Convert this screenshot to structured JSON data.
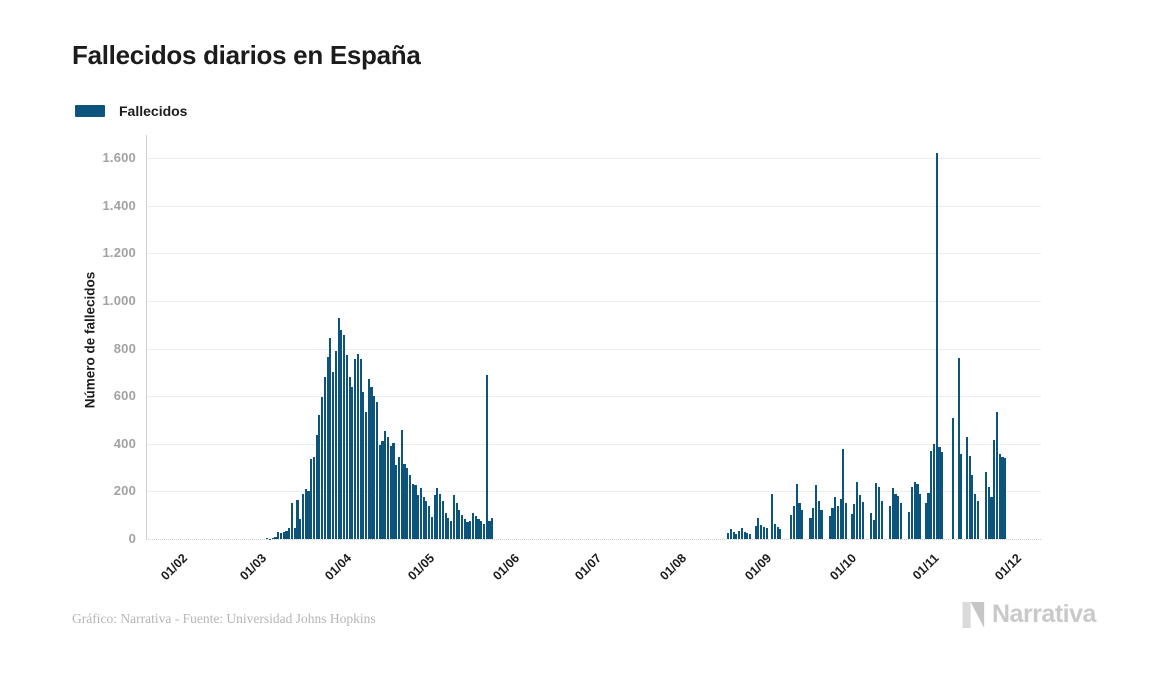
{
  "header": {
    "title": "Fallecidos diarios en España"
  },
  "legend": {
    "label": "Fallecidos",
    "color": "#0c547c"
  },
  "footer": {
    "credit": "Gráfico: Narrativa - Fuente: Universidad Johns Hopkins",
    "brand": "Narrativa"
  },
  "chart_data": {
    "type": "bar",
    "title": "Fallecidos diarios en España",
    "series_name": "Fallecidos",
    "xlabel": "",
    "ylabel": "Número de fallecidos",
    "ylim": [
      0,
      1600
    ],
    "grid": true,
    "legend_position": "top-left",
    "bar_color": "#0c547c",
    "y_ticks": [
      {
        "v": 0,
        "label": "0"
      },
      {
        "v": 200,
        "label": "200"
      },
      {
        "v": 400,
        "label": "400"
      },
      {
        "v": 600,
        "label": "600"
      },
      {
        "v": 800,
        "label": "800"
      },
      {
        "v": 1000,
        "label": "1.000"
      },
      {
        "v": 1200,
        "label": "1.200"
      },
      {
        "v": 1400,
        "label": "1.400"
      },
      {
        "v": 1600,
        "label": "1.600"
      }
    ],
    "x_ticks": [
      {
        "label": "01/02",
        "day": 0
      },
      {
        "label": "01/03",
        "day": 29
      },
      {
        "label": "01/04",
        "day": 60
      },
      {
        "label": "01/05",
        "day": 90
      },
      {
        "label": "01/06",
        "day": 121
      },
      {
        "label": "01/07",
        "day": 151
      },
      {
        "label": "01/08",
        "day": 182
      },
      {
        "label": "01/09",
        "day": 213
      },
      {
        "label": "01/10",
        "day": 244
      },
      {
        "label": "01/11",
        "day": 274
      },
      {
        "label": "01/12",
        "day": 304
      }
    ],
    "x_start": "01/02/2020",
    "x_end": "01/12/2020",
    "days_total": 305,
    "values": [
      0,
      0,
      0,
      0,
      0,
      0,
      0,
      0,
      0,
      0,
      0,
      0,
      0,
      0,
      0,
      0,
      0,
      0,
      0,
      0,
      0,
      0,
      0,
      0,
      0,
      0,
      0,
      0,
      0,
      0,
      0,
      0,
      0,
      0,
      3,
      2,
      5,
      10,
      28,
      25,
      30,
      33,
      45,
      150,
      45,
      165,
      85,
      190,
      210,
      200,
      336,
      345,
      437,
      520,
      596,
      680,
      764,
      845,
      700,
      790,
      930,
      878,
      857,
      773,
      680,
      638,
      756,
      775,
      757,
      617,
      533,
      672,
      640,
      600,
      575,
      394,
      410,
      455,
      430,
      390,
      405,
      310,
      345,
      458,
      315,
      300,
      268,
      230,
      227,
      185,
      215,
      175,
      160,
      140,
      92,
      185,
      213,
      190,
      160,
      110,
      90,
      75,
      185,
      150,
      120,
      102,
      85,
      70,
      75,
      110,
      95,
      85,
      75,
      65,
      690,
      75,
      90,
      0,
      0,
      0,
      0,
      0,
      0,
      0,
      0,
      0,
      0,
      0,
      0,
      0,
      0,
      0,
      0,
      0,
      0,
      0,
      0,
      0,
      0,
      0,
      0,
      0,
      0,
      0,
      0,
      0,
      0,
      0,
      0,
      0,
      0,
      0,
      0,
      0,
      0,
      0,
      0,
      0,
      0,
      0,
      0,
      0,
      0,
      0,
      0,
      0,
      0,
      0,
      0,
      0,
      0,
      0,
      0,
      0,
      0,
      0,
      0,
      0,
      0,
      0,
      0,
      0,
      0,
      0,
      0,
      0,
      0,
      0,
      0,
      0,
      0,
      0,
      0,
      0,
      0,
      0,
      0,
      0,
      0,
      0,
      0,
      0,
      25,
      40,
      30,
      20,
      35,
      45,
      30,
      25,
      20,
      0,
      55,
      90,
      60,
      50,
      45,
      0,
      190,
      65,
      50,
      40,
      0,
      0,
      0,
      100,
      140,
      230,
      150,
      120,
      0,
      0,
      90,
      130,
      227,
      160,
      120,
      0,
      0,
      95,
      130,
      177,
      140,
      170,
      380,
      150,
      0,
      105,
      145,
      240,
      185,
      155,
      0,
      0,
      110,
      80,
      235,
      220,
      160,
      0,
      0,
      140,
      215,
      190,
      180,
      150,
      0,
      0,
      115,
      220,
      240,
      230,
      190,
      0,
      150,
      195,
      370,
      400,
      1623,
      385,
      365,
      0,
      0,
      0,
      510,
      0,
      760,
      355,
      0,
      430,
      350,
      270,
      190,
      160,
      0,
      0,
      280,
      220,
      175,
      415,
      535,
      355,
      345,
      340,
      0
    ]
  }
}
